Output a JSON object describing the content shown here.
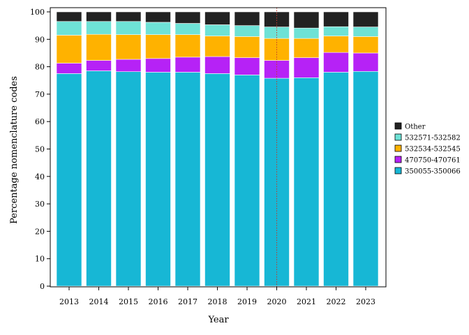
{
  "chart_data": {
    "type": "bar",
    "stacked": true,
    "title": "",
    "xlabel": "Year",
    "ylabel": "Percentage nomenclature codes",
    "ylim": [
      0,
      100
    ],
    "yticks": [
      0,
      10,
      20,
      30,
      40,
      50,
      60,
      70,
      80,
      90,
      100
    ],
    "grid": false,
    "legend_position": "right",
    "categories": [
      "2013",
      "2014",
      "2015",
      "2016",
      "2017",
      "2018",
      "2019",
      "2020",
      "2021",
      "2022",
      "2023"
    ],
    "series": [
      {
        "name": "350055-350066",
        "color": "#17b7d5",
        "values": [
          77.5,
          78.5,
          78.2,
          78.0,
          78.0,
          77.5,
          77.0,
          75.8,
          76.0,
          78.0,
          78.3
        ]
      },
      {
        "name": "470750-470761",
        "color": "#b622f6",
        "values": [
          3.8,
          3.8,
          4.5,
          5.0,
          5.5,
          6.2,
          6.3,
          6.5,
          7.3,
          7.2,
          6.7
        ]
      },
      {
        "name": "532534-532545",
        "color": "#ffb200",
        "values": [
          10.2,
          9.5,
          9.0,
          8.7,
          8.2,
          7.5,
          7.7,
          8.0,
          7.0,
          6.0,
          6.0
        ]
      },
      {
        "name": "532571-532582",
        "color": "#6ee2d6",
        "values": [
          5.0,
          4.7,
          4.8,
          4.5,
          4.1,
          4.1,
          4.0,
          4.2,
          3.8,
          3.4,
          3.5
        ]
      },
      {
        "name": "Other",
        "color": "#222222",
        "values": [
          3.5,
          3.5,
          3.5,
          3.8,
          4.2,
          4.7,
          5.0,
          5.5,
          5.9,
          5.4,
          5.5
        ]
      }
    ],
    "legend_order": [
      "Other",
      "532571-532582",
      "532534-532545",
      "470750-470761",
      "350055-350066"
    ],
    "reference_line": {
      "x": "2020",
      "style": "dotted",
      "color": "#c0392b"
    }
  }
}
